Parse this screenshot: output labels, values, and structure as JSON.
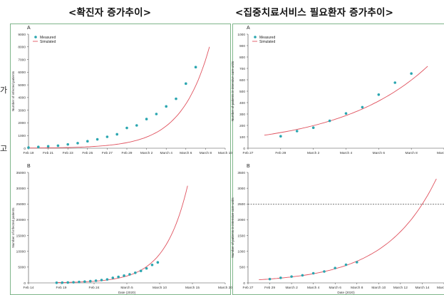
{
  "headings": {
    "left": "<확진자 증가추이>",
    "right": "<집중치료서비스 필요환자 증가추이>"
  },
  "edge_fragments": {
    "first": "가",
    "second": "고"
  },
  "colors": {
    "measured": "#2aa6b0",
    "simulated": "#e0535f",
    "frame": "#7fb58a"
  },
  "chart_data": [
    {
      "panel": "A",
      "type": "scatter",
      "ylabel": "Number of infected patients",
      "xlabel": "",
      "legend": [
        "Measured",
        "Simulated"
      ],
      "xticks": [
        "Feb 19",
        "Feb 21",
        "Feb 23",
        "Feb 25",
        "Feb 27",
        "Feb 29",
        "March 2",
        "March 4",
        "March 6",
        "March 8",
        "March 10"
      ],
      "yticks": [
        "0",
        "1000",
        "2000",
        "3000",
        "4000",
        "5000",
        "6000",
        "7000",
        "8000",
        "9000"
      ],
      "xlim": [
        0,
        20
      ],
      "ylim": [
        0,
        9000
      ],
      "series": [
        {
          "name": "Measured",
          "x": [
            0,
            1,
            2,
            3,
            4,
            5,
            6,
            7,
            8,
            9,
            10,
            11,
            12,
            13,
            14,
            15,
            16,
            17,
            18
          ],
          "y": [
            50,
            100,
            150,
            200,
            300,
            400,
            550,
            700,
            900,
            1100,
            1600,
            1800,
            2300,
            2700,
            3300,
            3900,
            5100,
            6400,
            null
          ]
        },
        {
          "name": "Simulated",
          "curve": "exp",
          "a": 14,
          "b": 0.345,
          "x_range": [
            0,
            18.4
          ]
        }
      ]
    },
    {
      "panel": "A",
      "type": "scatter",
      "ylabel": "Number of patients in intensive care units",
      "xlabel": "",
      "legend": [
        "Measured",
        "Simulated"
      ],
      "xticks": [
        "Feb 27",
        "Feb 29",
        "March 2",
        "March 4",
        "March 6",
        "March 8",
        "March 10"
      ],
      "yticks": [
        "0",
        "100",
        "200",
        "300",
        "400",
        "500",
        "600",
        "700",
        "800",
        "900",
        "1000"
      ],
      "xlim": [
        0,
        12
      ],
      "ylim": [
        0,
        1000
      ],
      "series": [
        {
          "name": "Measured",
          "x": [
            2,
            3,
            4,
            5,
            6,
            7,
            8,
            9,
            10
          ],
          "y": [
            105,
            150,
            180,
            240,
            305,
            360,
            470,
            575,
            655
          ]
        },
        {
          "name": "Simulated",
          "curve": "exp",
          "a": 95,
          "b": 0.184,
          "x_range": [
            1,
            11
          ]
        }
      ]
    },
    {
      "panel": "B",
      "type": "scatter",
      "ylabel": "Number of infected patients",
      "xlabel": "Date (2020)",
      "legend": [],
      "xticks": [
        "Feb 14",
        "Feb 19",
        "Feb 24",
        "March 5",
        "March 10",
        "March 15",
        "March 20"
      ],
      "yticks": [
        "0",
        "5000",
        "10000",
        "15000",
        "20000",
        "25000",
        "30000",
        "35000"
      ],
      "xlim": [
        0,
        35
      ],
      "ylim": [
        0,
        35000
      ],
      "series": [
        {
          "name": "Measured",
          "x": [
            5,
            6,
            7,
            8,
            9,
            10,
            11,
            12,
            13,
            14,
            15,
            16,
            17,
            18,
            19,
            20,
            21,
            22,
            23
          ],
          "y": [
            50,
            80,
            120,
            200,
            300,
            400,
            550,
            700,
            900,
            1100,
            1600,
            1900,
            2300,
            2700,
            3200,
            3800,
            4600,
            5700,
            6500
          ]
        },
        {
          "name": "Simulated",
          "curve": "exp",
          "a": 30,
          "b": 0.245,
          "x_range": [
            5,
            28.3
          ]
        }
      ]
    },
    {
      "panel": "B",
      "type": "scatter",
      "ylabel": "Number of patients in intensive care units",
      "xlabel": "Date (2020)",
      "legend": [],
      "xticks": [
        "Feb 27",
        "Feb 29",
        "March 2",
        "March 4",
        "March 6",
        "March 8",
        "March 10",
        "March 12",
        "March 14",
        "March 16"
      ],
      "yticks": [
        "0",
        "500",
        "1000",
        "1500",
        "2000",
        "2500",
        "3000",
        "3500"
      ],
      "xlim": [
        0,
        18
      ],
      "ylim": [
        0,
        3500
      ],
      "reference_line": 2500,
      "series": [
        {
          "name": "Measured",
          "x": [
            2,
            3,
            4,
            5,
            6,
            7,
            8,
            9,
            10
          ],
          "y": [
            120,
            160,
            200,
            240,
            305,
            360,
            470,
            575,
            655
          ]
        },
        {
          "name": "Simulated",
          "curve": "exp",
          "a": 80,
          "b": 0.215,
          "x_range": [
            1,
            17.3
          ]
        }
      ]
    }
  ]
}
